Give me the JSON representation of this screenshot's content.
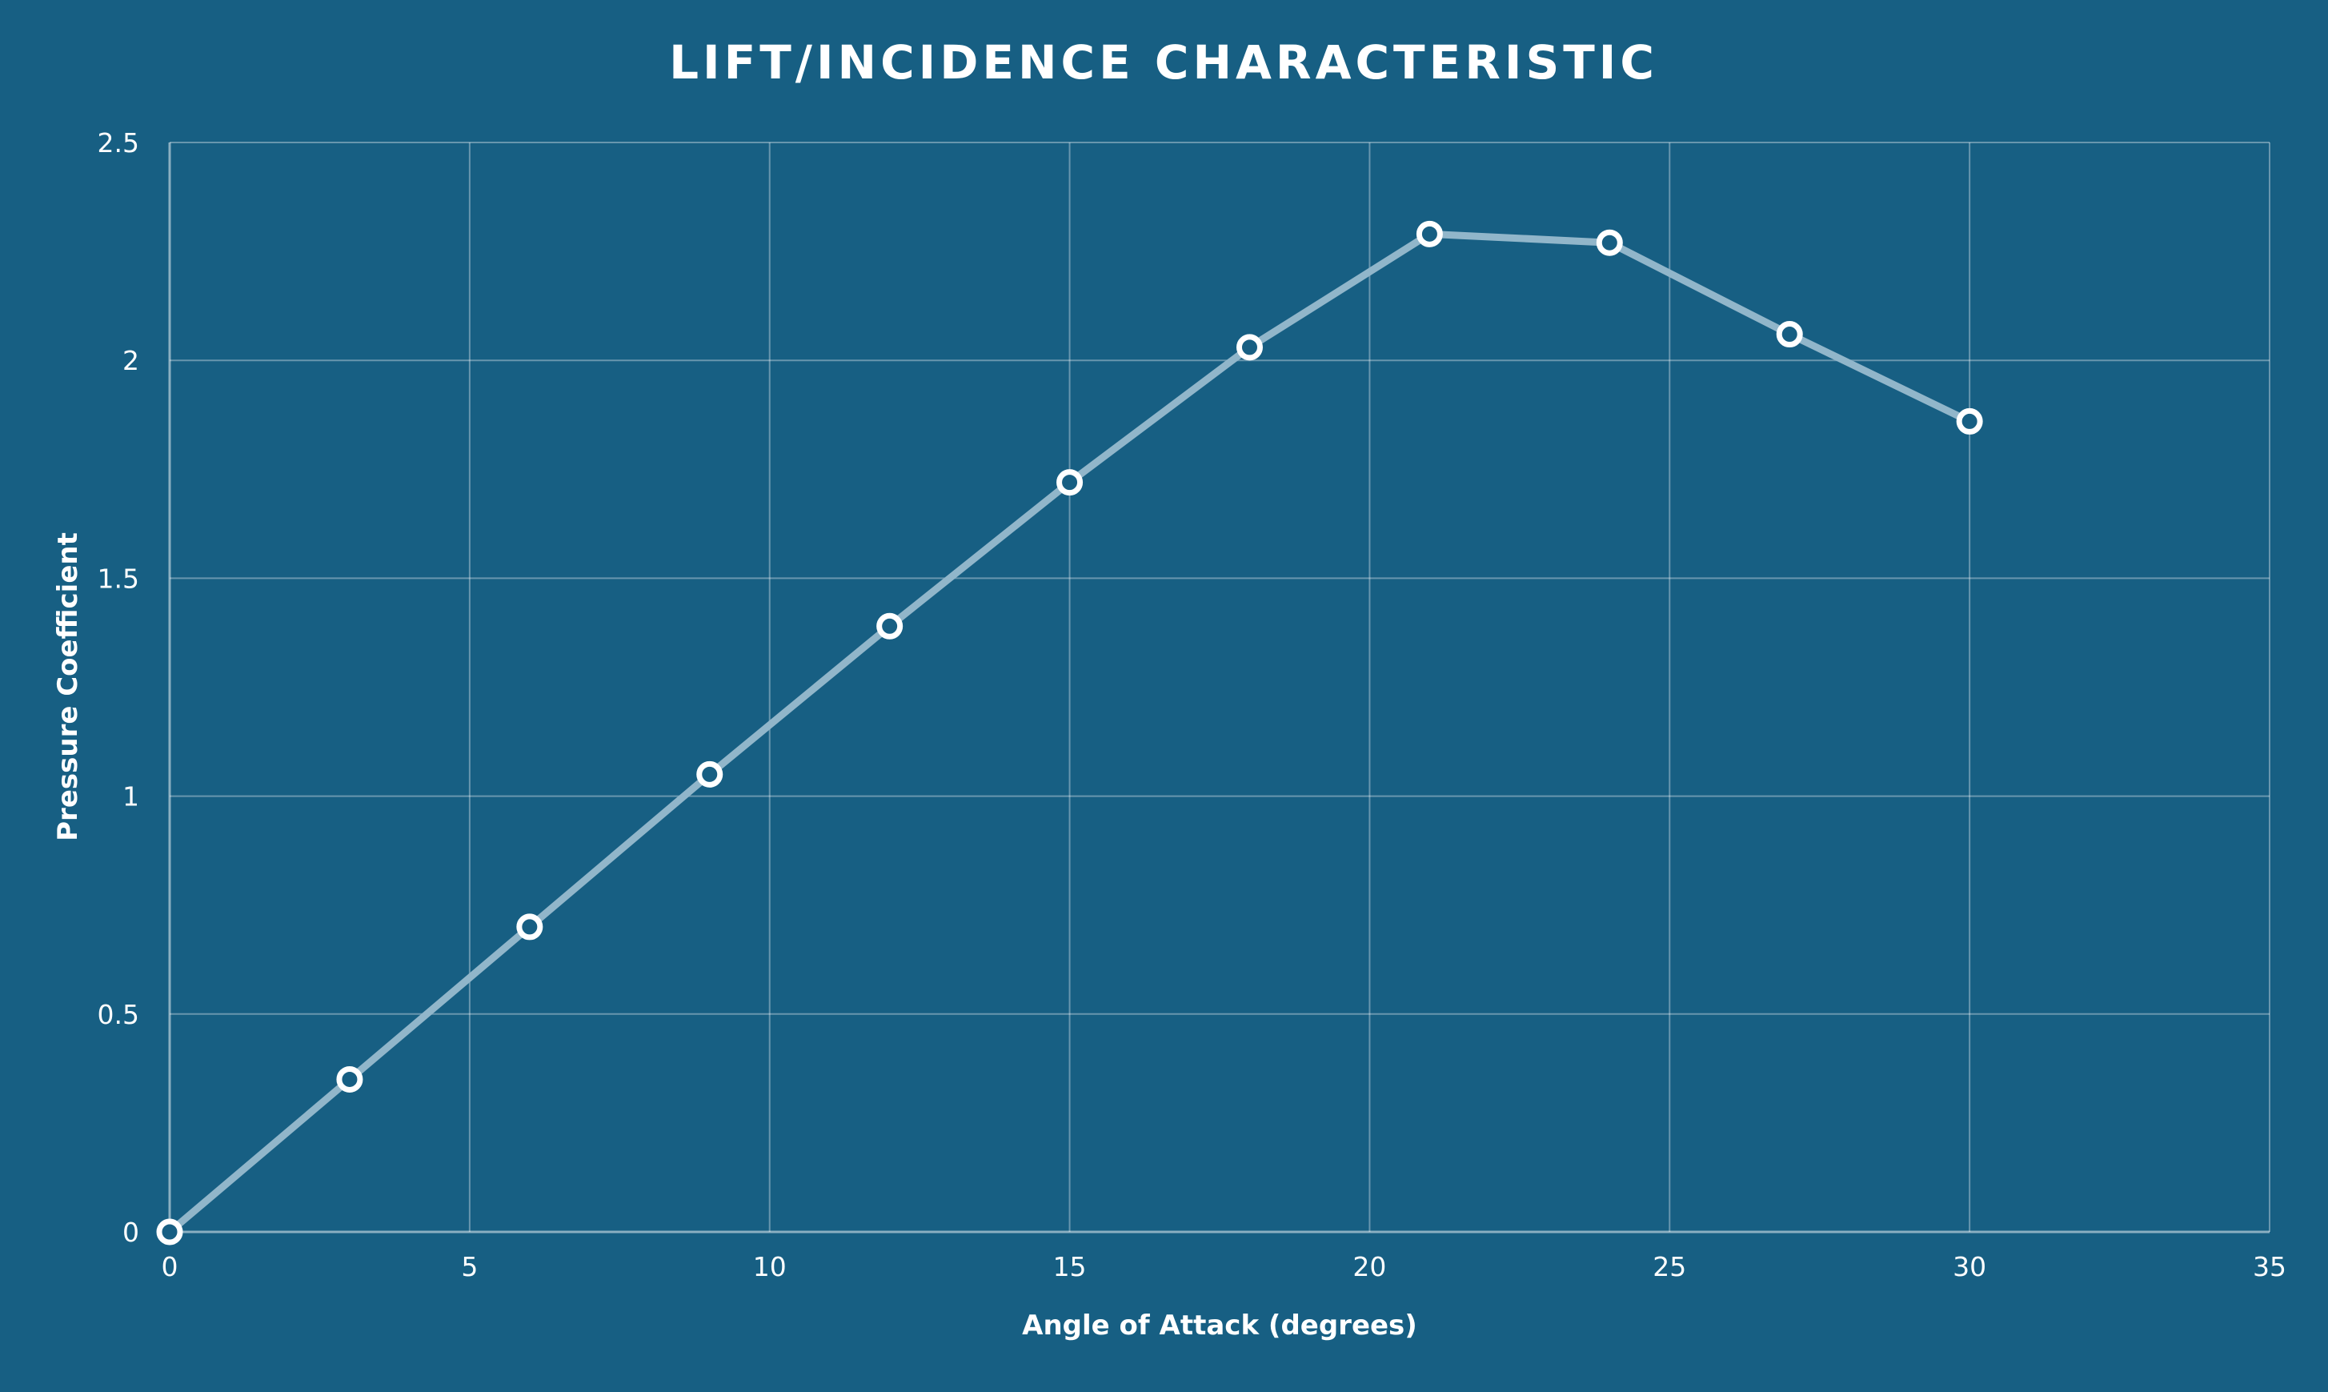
{
  "chart_data": {
    "type": "line",
    "title": "LIFT/INCIDENCE CHARACTERISTIC",
    "xlabel": "Angle of Attack (degrees)",
    "ylabel": "Pressure Coefficient",
    "xlim": [
      0,
      35
    ],
    "ylim": [
      0,
      2.5
    ],
    "xticks": [
      0,
      5,
      10,
      15,
      20,
      25,
      30,
      35
    ],
    "yticks": [
      0,
      0.5,
      1,
      1.5,
      2,
      2.5
    ],
    "xtick_labels": [
      "0",
      "5",
      "10",
      "15",
      "20",
      "25",
      "30",
      "35"
    ],
    "ytick_labels": [
      "0",
      "0.5",
      "1",
      "1.5",
      "2",
      "2.5"
    ],
    "grid": true,
    "legend": "none",
    "series": [
      {
        "x": [
          0,
          3,
          6,
          9,
          12,
          15,
          18,
          21,
          24,
          27,
          30
        ],
        "y": [
          0,
          0.35,
          0.7,
          1.05,
          1.39,
          1.72,
          2.03,
          2.29,
          2.27,
          2.06,
          1.86
        ],
        "line_color": "#91b6ca",
        "marker_fill": "#175f83",
        "marker_stroke": "#ffffff"
      }
    ]
  }
}
